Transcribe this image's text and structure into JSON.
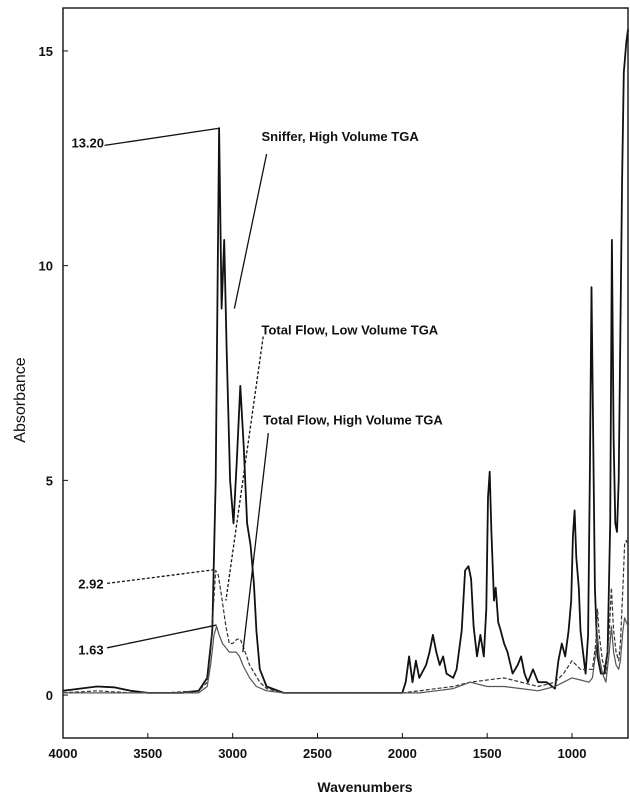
{
  "chart_data": {
    "type": "line",
    "title": "",
    "xlabel": "Wavenumbers",
    "ylabel": "Absorbance",
    "xlim": [
      4000,
      670
    ],
    "ylim": [
      -1,
      16
    ],
    "x_ticks": [
      {
        "value": 4000,
        "label": "4000"
      },
      {
        "value": 3500,
        "label": "3500"
      },
      {
        "value": 3000,
        "label": "3000"
      },
      {
        "value": 2500,
        "label": "2500"
      },
      {
        "value": 2000,
        "label": "2000"
      },
      {
        "value": 1500,
        "label": "1500"
      },
      {
        "value": 1000,
        "label": "1000"
      }
    ],
    "y_ticks": [
      {
        "value": 0,
        "label": "0"
      },
      {
        "value": 5,
        "label": "5"
      },
      {
        "value": 10,
        "label": "10"
      },
      {
        "value": 15,
        "label": "15"
      }
    ],
    "grid": false,
    "series": [
      {
        "color": "#111111",
        "dash": "",
        "points": [
          [
            4000,
            0.1
          ],
          [
            3900,
            0.15
          ],
          [
            3800,
            0.2
          ],
          [
            3700,
            0.18
          ],
          [
            3600,
            0.1
          ],
          [
            3500,
            0.05
          ],
          [
            3400,
            0.05
          ],
          [
            3300,
            0.05
          ],
          [
            3200,
            0.1
          ],
          [
            3150,
            0.4
          ],
          [
            3120,
            1.5
          ],
          [
            3100,
            5.0
          ],
          [
            3080,
            13.2
          ],
          [
            3065,
            9.0
          ],
          [
            3050,
            10.6
          ],
          [
            3035,
            8.0
          ],
          [
            3015,
            5.0
          ],
          [
            2995,
            4.0
          ],
          [
            2975,
            5.5
          ],
          [
            2955,
            7.2
          ],
          [
            2935,
            5.8
          ],
          [
            2915,
            4.0
          ],
          [
            2895,
            3.5
          ],
          [
            2875,
            2.6
          ],
          [
            2860,
            1.5
          ],
          [
            2840,
            0.6
          ],
          [
            2800,
            0.2
          ],
          [
            2700,
            0.05
          ],
          [
            2500,
            0.05
          ],
          [
            2200,
            0.05
          ],
          [
            2000,
            0.05
          ],
          [
            1980,
            0.3
          ],
          [
            1960,
            0.9
          ],
          [
            1940,
            0.3
          ],
          [
            1920,
            0.8
          ],
          [
            1900,
            0.4
          ],
          [
            1860,
            0.7
          ],
          [
            1840,
            1.0
          ],
          [
            1820,
            1.4
          ],
          [
            1800,
            1.0
          ],
          [
            1780,
            0.7
          ],
          [
            1760,
            0.9
          ],
          [
            1740,
            0.5
          ],
          [
            1700,
            0.4
          ],
          [
            1680,
            0.6
          ],
          [
            1650,
            1.5
          ],
          [
            1630,
            2.9
          ],
          [
            1610,
            3.0
          ],
          [
            1595,
            2.7
          ],
          [
            1580,
            1.6
          ],
          [
            1560,
            0.9
          ],
          [
            1540,
            1.4
          ],
          [
            1520,
            0.9
          ],
          [
            1505,
            2.0
          ],
          [
            1495,
            4.6
          ],
          [
            1485,
            5.2
          ],
          [
            1475,
            3.8
          ],
          [
            1460,
            2.2
          ],
          [
            1450,
            2.5
          ],
          [
            1435,
            1.7
          ],
          [
            1420,
            1.5
          ],
          [
            1400,
            1.2
          ],
          [
            1380,
            1.0
          ],
          [
            1350,
            0.5
          ],
          [
            1320,
            0.7
          ],
          [
            1300,
            0.9
          ],
          [
            1280,
            0.5
          ],
          [
            1260,
            0.3
          ],
          [
            1230,
            0.6
          ],
          [
            1200,
            0.3
          ],
          [
            1150,
            0.3
          ],
          [
            1100,
            0.15
          ],
          [
            1080,
            0.8
          ],
          [
            1060,
            1.2
          ],
          [
            1040,
            0.9
          ],
          [
            1020,
            1.5
          ],
          [
            1005,
            2.2
          ],
          [
            995,
            3.7
          ],
          [
            985,
            4.3
          ],
          [
            975,
            3.2
          ],
          [
            960,
            2.5
          ],
          [
            950,
            1.5
          ],
          [
            935,
            1.0
          ],
          [
            920,
            0.5
          ],
          [
            905,
            1.4
          ],
          [
            895,
            5.0
          ],
          [
            885,
            9.5
          ],
          [
            875,
            6.0
          ],
          [
            865,
            2.5
          ],
          [
            850,
            0.9
          ],
          [
            830,
            0.5
          ],
          [
            810,
            0.5
          ],
          [
            790,
            1.0
          ],
          [
            775,
            4.0
          ],
          [
            765,
            10.6
          ],
          [
            755,
            6.0
          ],
          [
            745,
            4.0
          ],
          [
            735,
            3.8
          ],
          [
            725,
            5.0
          ],
          [
            715,
            8.5
          ],
          [
            705,
            12.0
          ],
          [
            695,
            14.5
          ],
          [
            680,
            15.2
          ],
          [
            670,
            15.5
          ]
        ]
      },
      {
        "color": "#333333",
        "dash": "4,2",
        "points": [
          [
            4000,
            0.05
          ],
          [
            3800,
            0.1
          ],
          [
            3600,
            0.05
          ],
          [
            3400,
            0.05
          ],
          [
            3200,
            0.1
          ],
          [
            3150,
            0.3
          ],
          [
            3130,
            1.0
          ],
          [
            3115,
            2.0
          ],
          [
            3100,
            2.9
          ],
          [
            3085,
            2.8
          ],
          [
            3065,
            2.3
          ],
          [
            3040,
            1.6
          ],
          [
            3020,
            1.2
          ],
          [
            3000,
            1.2
          ],
          [
            2975,
            1.3
          ],
          [
            2955,
            1.3
          ],
          [
            2935,
            1.1
          ],
          [
            2900,
            0.7
          ],
          [
            2870,
            0.5
          ],
          [
            2840,
            0.3
          ],
          [
            2800,
            0.15
          ],
          [
            2700,
            0.05
          ],
          [
            2500,
            0.05
          ],
          [
            2200,
            0.05
          ],
          [
            2000,
            0.05
          ],
          [
            1900,
            0.1
          ],
          [
            1800,
            0.15
          ],
          [
            1700,
            0.2
          ],
          [
            1600,
            0.3
          ],
          [
            1500,
            0.35
          ],
          [
            1400,
            0.4
          ],
          [
            1300,
            0.3
          ],
          [
            1200,
            0.2
          ],
          [
            1100,
            0.3
          ],
          [
            1050,
            0.5
          ],
          [
            1000,
            0.8
          ],
          [
            950,
            0.6
          ],
          [
            900,
            0.6
          ],
          [
            880,
            0.6
          ],
          [
            860,
            1.2
          ],
          [
            850,
            2.0
          ],
          [
            840,
            1.4
          ],
          [
            820,
            0.8
          ],
          [
            800,
            0.5
          ],
          [
            780,
            1.5
          ],
          [
            768,
            2.5
          ],
          [
            755,
            1.5
          ],
          [
            740,
            1.0
          ],
          [
            725,
            0.8
          ],
          [
            715,
            1.2
          ],
          [
            700,
            2.5
          ],
          [
            690,
            3.5
          ],
          [
            680,
            3.6
          ],
          [
            670,
            3.5
          ]
        ]
      },
      {
        "color": "#555555",
        "dash": "",
        "points": [
          [
            4000,
            0.05
          ],
          [
            3800,
            0.05
          ],
          [
            3600,
            0.05
          ],
          [
            3400,
            0.05
          ],
          [
            3200,
            0.05
          ],
          [
            3150,
            0.2
          ],
          [
            3130,
            0.7
          ],
          [
            3110,
            1.4
          ],
          [
            3095,
            1.6
          ],
          [
            3080,
            1.4
          ],
          [
            3060,
            1.2
          ],
          [
            3040,
            1.1
          ],
          [
            3020,
            1.0
          ],
          [
            3000,
            1.0
          ],
          [
            2980,
            1.0
          ],
          [
            2960,
            0.9
          ],
          [
            2940,
            0.7
          ],
          [
            2900,
            0.4
          ],
          [
            2860,
            0.2
          ],
          [
            2800,
            0.1
          ],
          [
            2700,
            0.05
          ],
          [
            2500,
            0.05
          ],
          [
            2200,
            0.05
          ],
          [
            2000,
            0.05
          ],
          [
            1900,
            0.05
          ],
          [
            1800,
            0.1
          ],
          [
            1700,
            0.15
          ],
          [
            1600,
            0.3
          ],
          [
            1500,
            0.2
          ],
          [
            1400,
            0.2
          ],
          [
            1300,
            0.15
          ],
          [
            1200,
            0.1
          ],
          [
            1100,
            0.2
          ],
          [
            1050,
            0.3
          ],
          [
            1000,
            0.4
          ],
          [
            950,
            0.35
          ],
          [
            900,
            0.3
          ],
          [
            880,
            0.4
          ],
          [
            860,
            1.0
          ],
          [
            850,
            1.4
          ],
          [
            840,
            0.9
          ],
          [
            820,
            0.5
          ],
          [
            800,
            0.3
          ],
          [
            780,
            1.0
          ],
          [
            768,
            1.6
          ],
          [
            755,
            1.0
          ],
          [
            740,
            0.7
          ],
          [
            725,
            0.6
          ],
          [
            715,
            0.8
          ],
          [
            700,
            1.5
          ],
          [
            690,
            1.8
          ],
          [
            680,
            1.7
          ],
          [
            670,
            1.6
          ]
        ]
      }
    ],
    "annotations": [
      {
        "text": "13.20",
        "label_x": 3950,
        "label_y": 12.75,
        "anchor": "start",
        "target_x": 3080,
        "target_y": 13.2,
        "start_x": 3755,
        "start_y": 12.8,
        "dash": ""
      },
      {
        "text": "Sniffer, High Volume TGA",
        "label_x": 2830,
        "label_y": 12.9,
        "anchor": "start",
        "target_x": 2990,
        "target_y": 9.0,
        "start_x": 2800,
        "start_y": 12.6,
        "dash": ""
      },
      {
        "text": "Total Flow, Low Volume TGA",
        "label_x": 2830,
        "label_y": 8.4,
        "anchor": "start",
        "target_x": 3040,
        "target_y": 2.2,
        "start_x": 2820,
        "start_y": 8.35,
        "dash": "3,2"
      },
      {
        "text": "Total Flow, High Volume TGA",
        "label_x": 2820,
        "label_y": 6.3,
        "anchor": "start",
        "target_x": 2940,
        "target_y": 1.0,
        "start_x": 2790,
        "start_y": 6.1,
        "dash": ""
      },
      {
        "text": "2.92",
        "label_x": 3910,
        "label_y": 2.48,
        "anchor": "start",
        "target_x": 3105,
        "target_y": 2.92,
        "start_x": 3740,
        "start_y": 2.6,
        "dash": "3,2"
      },
      {
        "text": "1.63",
        "label_x": 3910,
        "label_y": 0.95,
        "anchor": "start",
        "target_x": 3095,
        "target_y": 1.63,
        "start_x": 3740,
        "start_y": 1.1,
        "dash": ""
      }
    ]
  }
}
